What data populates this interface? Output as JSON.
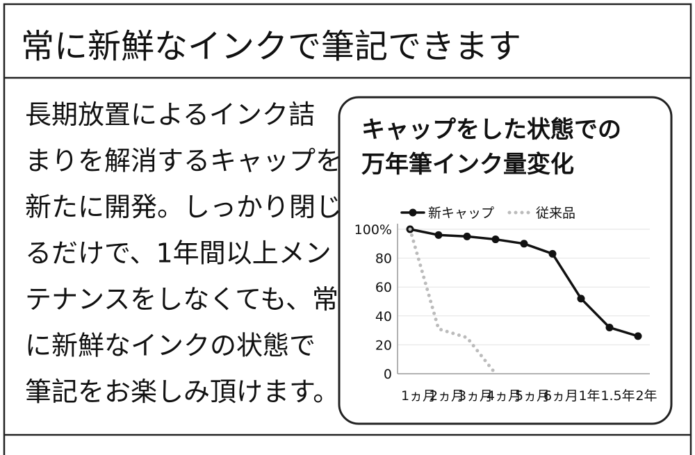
{
  "title": "常に新鮮なインクで筆記できます",
  "body_lines": [
    "長期放置によるインク詰",
    "まりを解消するキャップを",
    "新たに開発。しっかり閉じ",
    "るだけで、1年間以上メン",
    "テナンスをしなくても、常",
    "に新鮮なインクの状態で",
    "筆記をお楽しみ頂けます。"
  ],
  "chart_data": {
    "type": "line",
    "title": [
      "キャップをした状態での",
      "万年筆インク量変化"
    ],
    "categories": [
      "1ヵ月",
      "2ヵ月",
      "3ヵ月",
      "4ヵ月",
      "5ヵ月",
      "6ヵ月",
      "1年",
      "1.5年",
      "2年"
    ],
    "series": [
      {
        "name": "新キャップ",
        "color": "#111111",
        "style": "solid",
        "values": [
          100,
          96,
          95,
          93,
          90,
          83,
          52,
          32,
          26
        ]
      },
      {
        "name": "従来品",
        "color": "#bbbbbb",
        "style": "dotted",
        "values": [
          100,
          31,
          25,
          0,
          null,
          null,
          null,
          null,
          null
        ]
      }
    ],
    "ylim": [
      0,
      100
    ],
    "yticks": [
      0,
      20,
      40,
      60,
      80,
      {
        "value": 100,
        "label": "100%"
      }
    ],
    "grid": true,
    "legend": "top"
  }
}
